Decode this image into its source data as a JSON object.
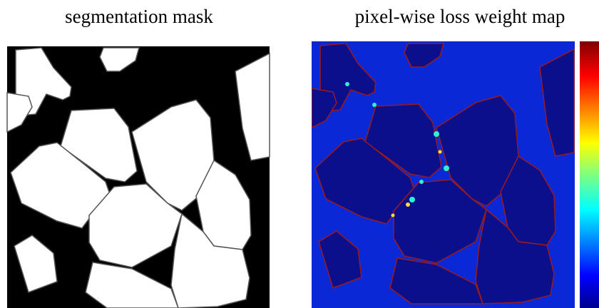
{
  "panels": [
    {
      "title": "segmentation mask"
    },
    {
      "title": "pixel-wise loss weight map"
    }
  ]
}
